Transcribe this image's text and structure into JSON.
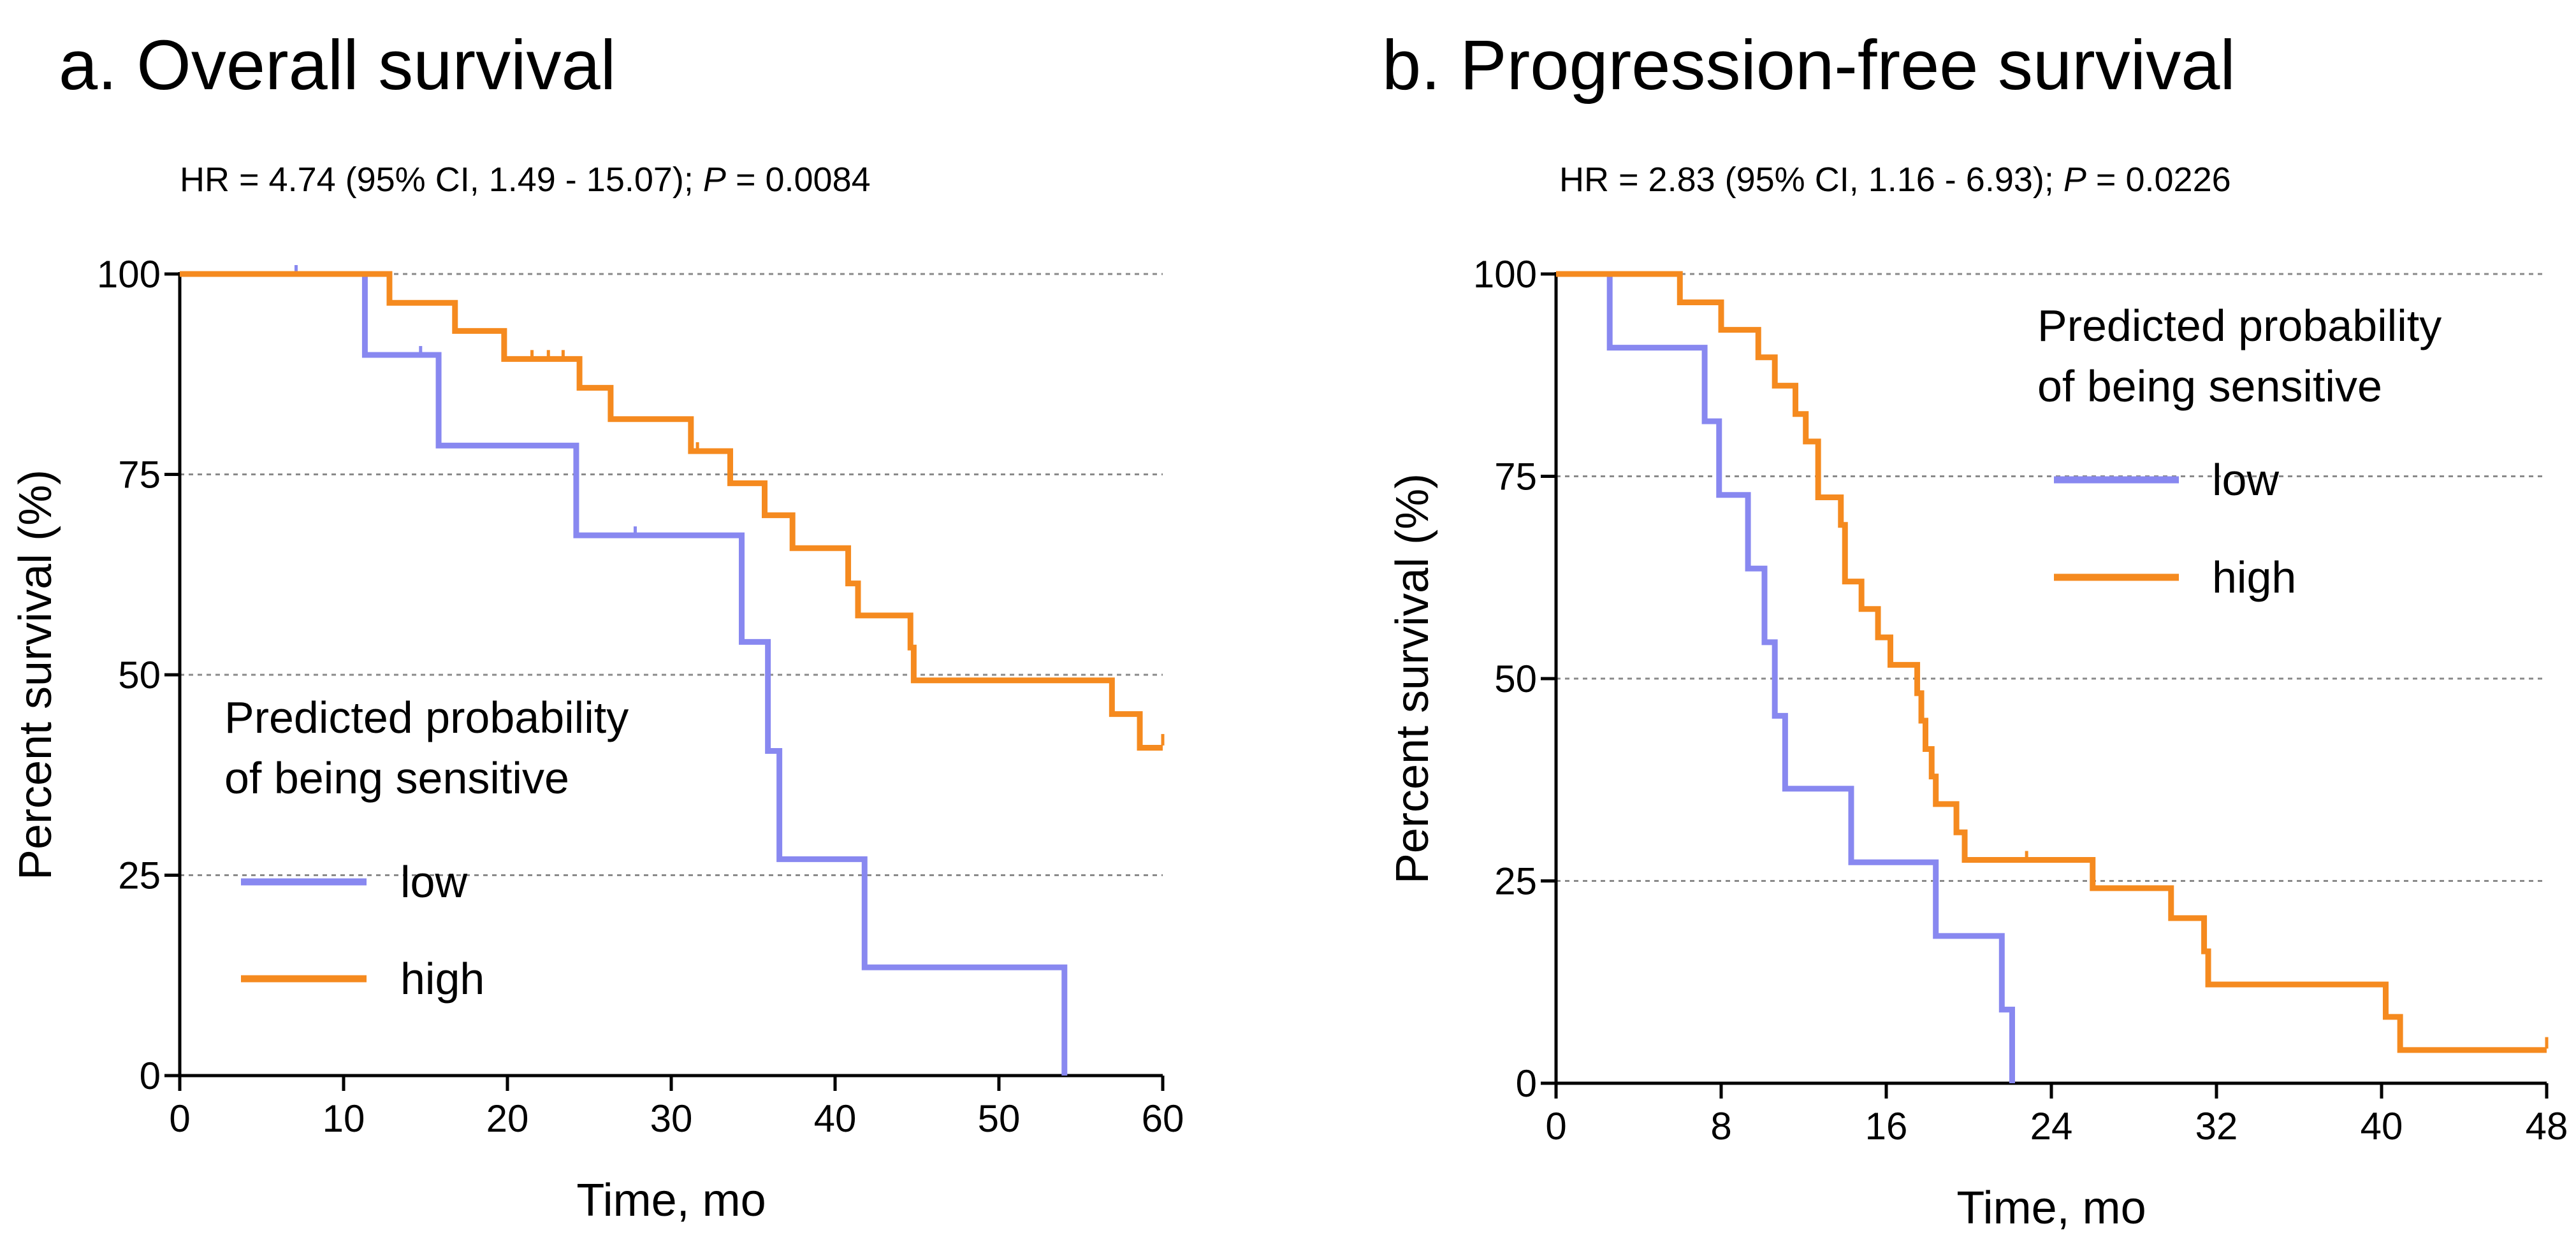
{
  "chart_data": [
    {
      "type": "line",
      "subtype": "kaplan-meier",
      "title": "a.  Overall survival",
      "stats": {
        "prefix": "HR = 4.74 (95% CI, 1.49 - 15.07); ",
        "p_symbol": "P",
        "suffix": " = 0.0084"
      },
      "xlabel": "Time, mo",
      "ylabel": "Percent survival (%)",
      "xlim": [
        0,
        60
      ],
      "ylim": [
        0,
        100
      ],
      "xticks": [
        0,
        10,
        20,
        30,
        40,
        50,
        60
      ],
      "yticks": [
        0,
        25,
        50,
        75,
        100
      ],
      "grid": true,
      "legend": {
        "title_lines": [
          "Predicted probability",
          "of being sensitive"
        ],
        "position": "lower-left"
      },
      "series": [
        {
          "name": "low",
          "color": "#8888f0",
          "steps": [
            [
              0,
              100
            ],
            [
              11.3,
              89.9
            ],
            [
              15.8,
              78.6
            ],
            [
              24.2,
              67.4
            ],
            [
              34.3,
              54.1
            ],
            [
              35.9,
              40.5
            ],
            [
              36.6,
              27
            ],
            [
              41.8,
              13.5
            ],
            [
              54,
              0
            ]
          ],
          "censored": [
            [
              7.1,
              100
            ],
            [
              14.7,
              89.9
            ],
            [
              27.8,
              67.4
            ]
          ]
        },
        {
          "name": "high",
          "color": "#f58a1f",
          "steps": [
            [
              0,
              100
            ],
            [
              12.8,
              96.4
            ],
            [
              16.8,
              92.9
            ],
            [
              19.8,
              89.4
            ],
            [
              24.4,
              85.8
            ],
            [
              26.3,
              81.9
            ],
            [
              31.2,
              77.9
            ],
            [
              33.6,
              73.9
            ],
            [
              35.7,
              69.9
            ],
            [
              37.4,
              65.8
            ],
            [
              40.8,
              61.4
            ],
            [
              41.4,
              57.4
            ],
            [
              44.6,
              53.4
            ],
            [
              44.8,
              49.3
            ],
            [
              56.9,
              45.1
            ],
            [
              58.6,
              40.9
            ]
          ],
          "censored": [
            [
              21.5,
              89.4
            ],
            [
              22.5,
              89.4
            ],
            [
              23.4,
              89.4
            ],
            [
              31.6,
              77.9
            ],
            [
              60,
              41.5
            ]
          ]
        }
      ]
    },
    {
      "type": "line",
      "subtype": "kaplan-meier",
      "title": "b.  Progression-free survival",
      "stats": {
        "prefix": "HR = 2.83 (95% CI, 1.16 - 6.93); ",
        "p_symbol": "P",
        "suffix": " = 0.0226"
      },
      "xlabel": "Time, mo",
      "ylabel": "Percent survival (%)",
      "xlim": [
        0,
        48
      ],
      "ylim": [
        0,
        100
      ],
      "xticks": [
        0,
        8,
        16,
        24,
        32,
        40,
        48
      ],
      "yticks": [
        0,
        25,
        50,
        75,
        100
      ],
      "grid": true,
      "legend": {
        "title_lines": [
          "Predicted probability",
          "of being sensitive"
        ],
        "position": "top-right"
      },
      "series": [
        {
          "name": "low",
          "color": "#8888f0",
          "steps": [
            [
              0,
              100
            ],
            [
              2.6,
              90.9
            ],
            [
              7.2,
              81.8
            ],
            [
              7.9,
              72.7
            ],
            [
              9.3,
              63.6
            ],
            [
              10.1,
              54.5
            ],
            [
              10.6,
              45.4
            ],
            [
              11.1,
              36.4
            ],
            [
              14.3,
              27.3
            ],
            [
              18.4,
              18.2
            ],
            [
              21.6,
              9.1
            ],
            [
              22.1,
              0
            ]
          ],
          "censored": []
        },
        {
          "name": "high",
          "color": "#f58a1f",
          "steps": [
            [
              0,
              100
            ],
            [
              6,
              96.5
            ],
            [
              8,
              93.1
            ],
            [
              9.8,
              89.7
            ],
            [
              10.6,
              86.2
            ],
            [
              11.6,
              82.7
            ],
            [
              12.1,
              79.3
            ],
            [
              12.7,
              72.4
            ],
            [
              13.8,
              69
            ],
            [
              14,
              62
            ],
            [
              14.8,
              58.6
            ],
            [
              15.6,
              55.1
            ],
            [
              16.2,
              51.7
            ],
            [
              17.5,
              48.2
            ],
            [
              17.7,
              44.8
            ],
            [
              17.9,
              41.3
            ],
            [
              18.2,
              37.9
            ],
            [
              18.4,
              34.5
            ],
            [
              19.4,
              31
            ],
            [
              19.8,
              27.6
            ],
            [
              26,
              24.1
            ],
            [
              29.8,
              20.4
            ],
            [
              31.4,
              16.3
            ],
            [
              31.6,
              12.2
            ],
            [
              40.2,
              8.2
            ],
            [
              40.9,
              4.1
            ]
          ],
          "censored": [
            [
              22.8,
              27.6
            ],
            [
              48,
              4.6
            ]
          ]
        }
      ]
    }
  ]
}
